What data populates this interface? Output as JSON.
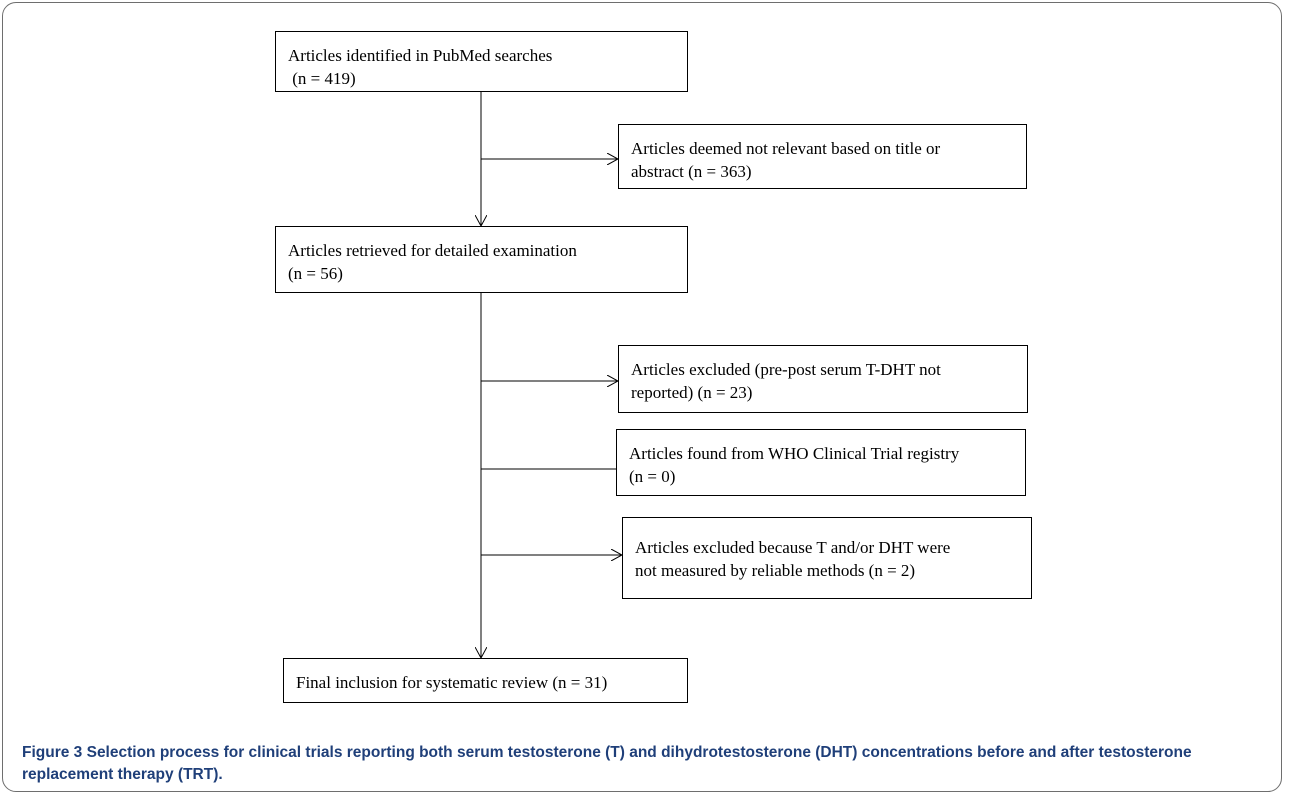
{
  "diagram": {
    "boxes": [
      {
        "id": "identified",
        "line1": "Articles identified in PubMed searches",
        "line2": " (n = 419)"
      },
      {
        "id": "not-relevant",
        "line1": "Articles deemed not relevant based on title or",
        "line2": "abstract (n = 363)"
      },
      {
        "id": "retrieved",
        "line1": "Articles retrieved for detailed examination",
        "line2": "(n = 56)"
      },
      {
        "id": "excluded-not-reported",
        "line1": "Articles excluded (pre-post serum T-DHT not",
        "line2": "reported) (n = 23)"
      },
      {
        "id": "who-registry",
        "line1": "Articles found from WHO Clinical Trial registry",
        "line2": "(n = 0)"
      },
      {
        "id": "excluded-methods",
        "line1": "Articles excluded because T and/or DHT were",
        "line2": "not measured by reliable methods (n = 2)"
      },
      {
        "id": "final",
        "line1": "Final inclusion for systematic review (n = 31)"
      }
    ]
  },
  "caption": {
    "label": "Figure 3",
    "text": " Selection process for clinical trials reporting both serum testosterone (T) and dihydrotestosterone (DHT) concentrations before and after testosterone replacement therapy (TRT)."
  }
}
